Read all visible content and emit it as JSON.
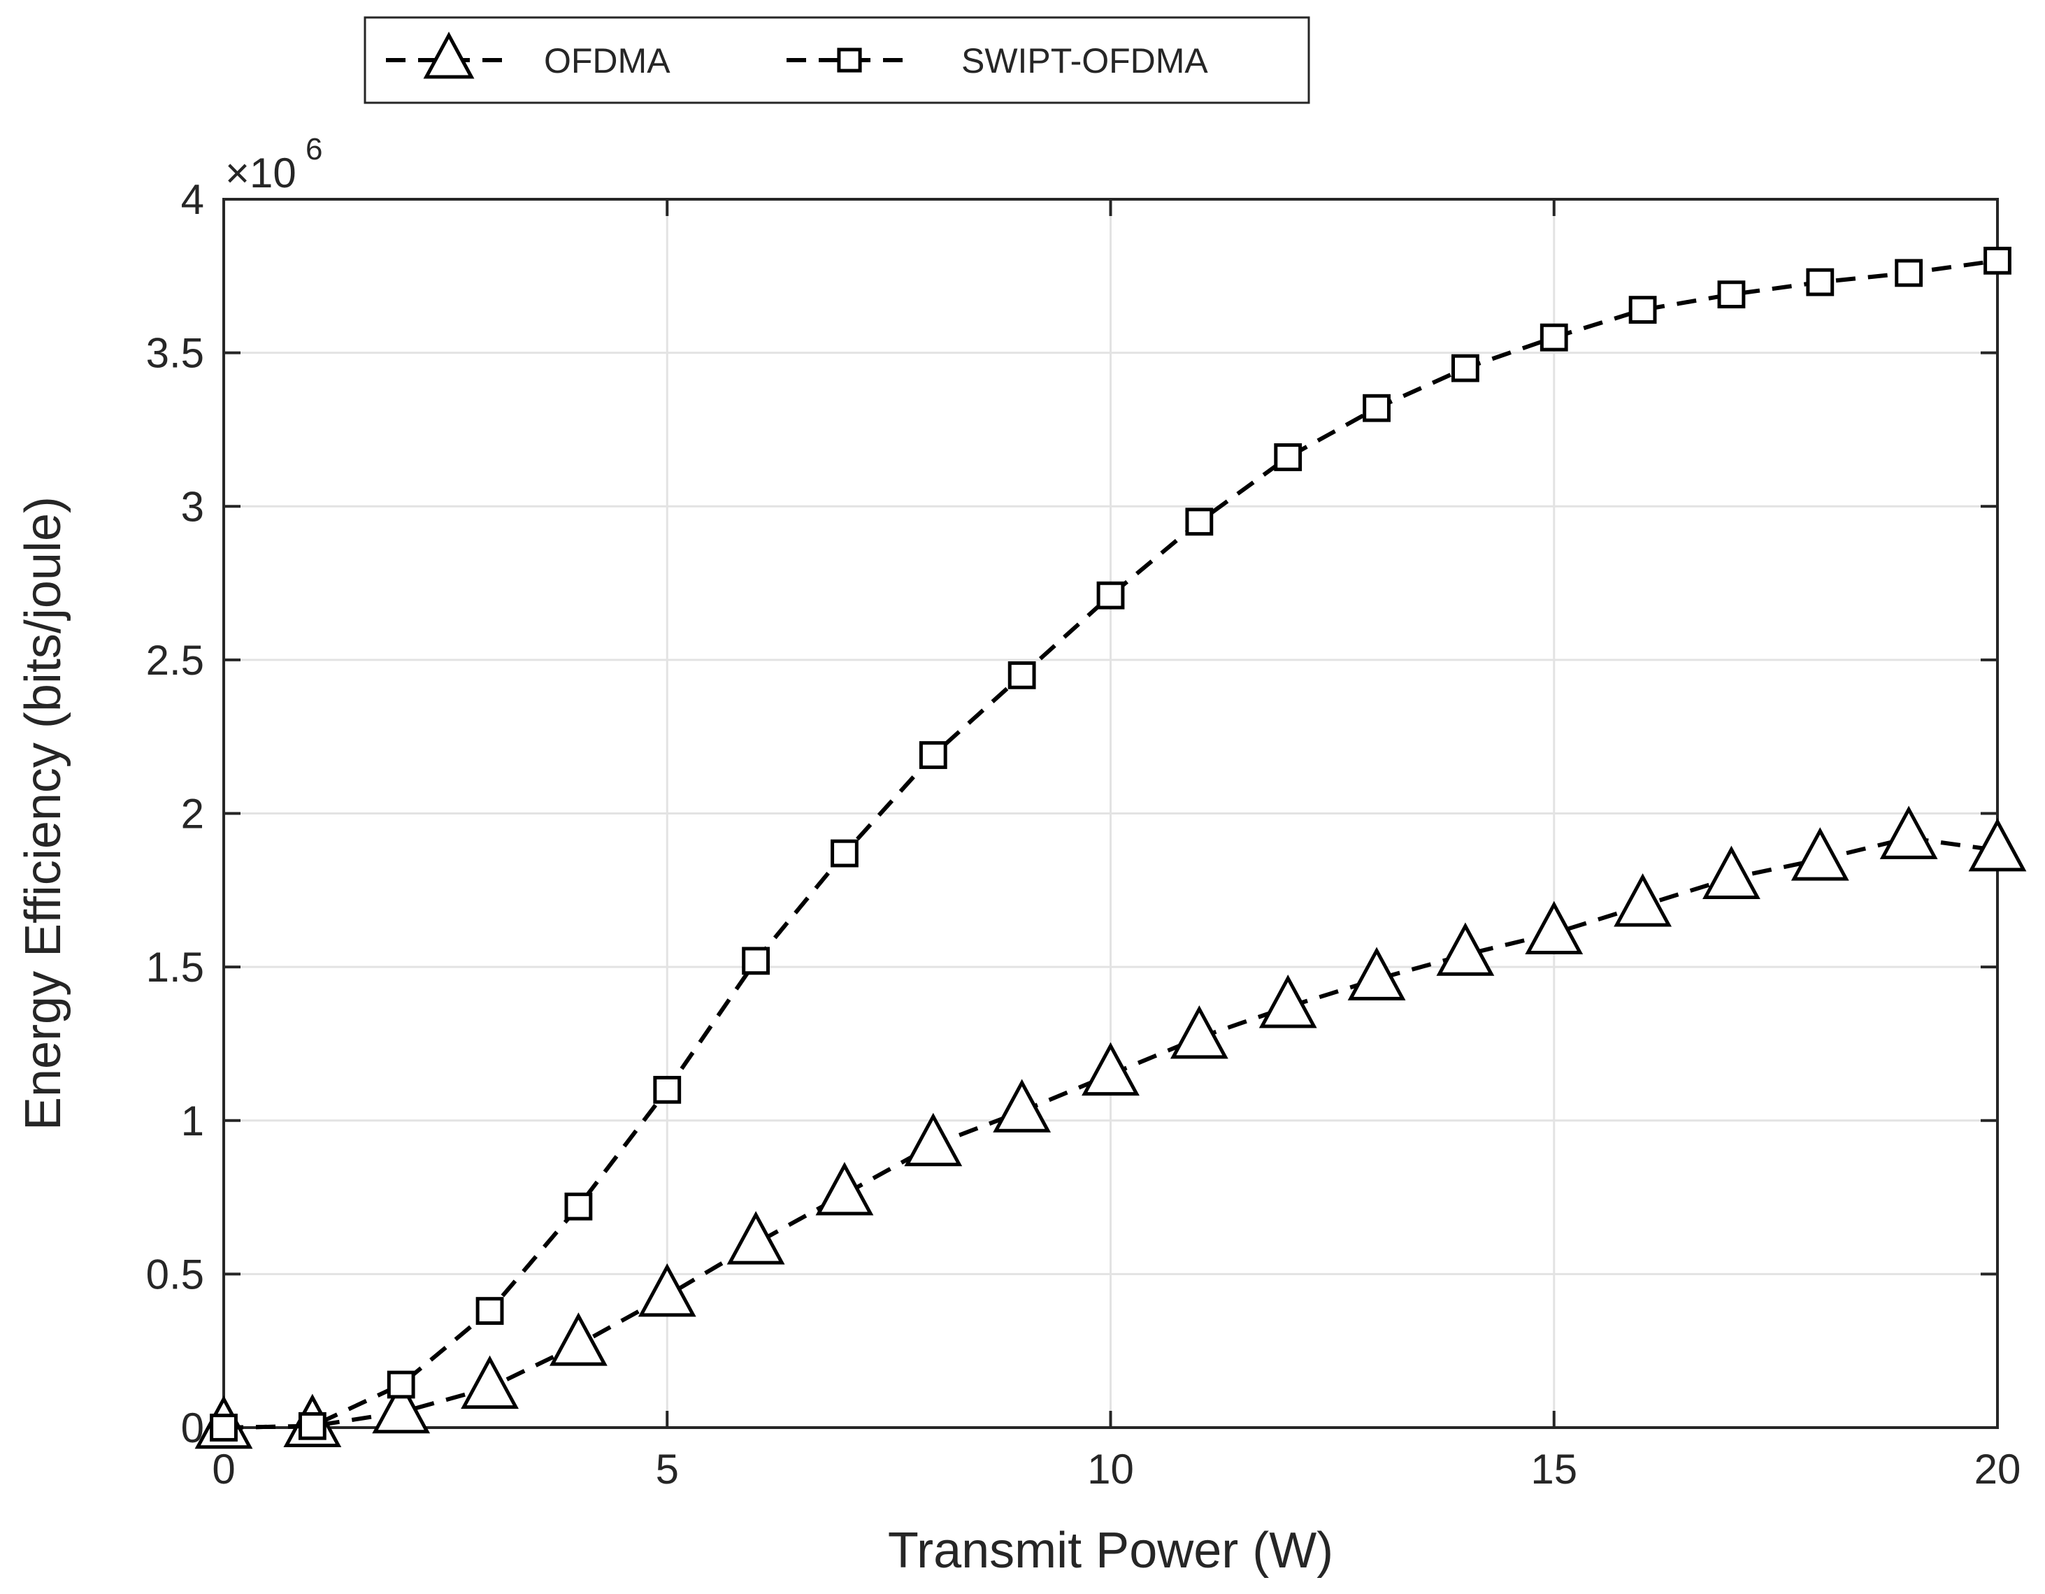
{
  "chart_data": {
    "type": "line",
    "title": "",
    "xlabel": "Transmit Power (W)",
    "ylabel": "Energy Efficiency (bits/joule)",
    "xlim": [
      0,
      20
    ],
    "ylim": [
      0,
      4
    ],
    "xticks": [
      0,
      5,
      10,
      15,
      20
    ],
    "xtick_labels": [
      "0",
      "5",
      "10",
      "15",
      "20"
    ],
    "yticks": [
      0,
      0.5,
      1,
      1.5,
      2,
      2.5,
      3,
      3.5,
      4
    ],
    "ytick_labels": [
      "0",
      "0.5",
      "1",
      "1.5",
      "2",
      "2.5",
      "3",
      "3.5",
      "4"
    ],
    "y_multiplier": {
      "base": "×10",
      "exponent": "6"
    },
    "grid": true,
    "legend_position": "top",
    "x": [
      0,
      1,
      2,
      3,
      4,
      5,
      6,
      7,
      8,
      9,
      10,
      11,
      12,
      13,
      14,
      15,
      16,
      17,
      18,
      19,
      20
    ],
    "series": [
      {
        "name": "OFDMA",
        "marker": "triangle",
        "line_style": "dashed",
        "color": "#000000",
        "values": [
          0,
          0.005,
          0.05,
          0.13,
          0.27,
          0.43,
          0.6,
          0.76,
          0.92,
          1.03,
          1.15,
          1.27,
          1.37,
          1.46,
          1.54,
          1.61,
          1.7,
          1.79,
          1.85,
          1.92,
          1.88
        ]
      },
      {
        "name": "SWIPT-OFDMA",
        "marker": "square",
        "line_style": "dashed",
        "color": "#000000",
        "values": [
          0,
          0.005,
          0.14,
          0.38,
          0.72,
          1.1,
          1.52,
          1.87,
          2.19,
          2.45,
          2.71,
          2.95,
          3.16,
          3.32,
          3.45,
          3.55,
          3.64,
          3.69,
          3.73,
          3.76,
          3.8
        ]
      }
    ]
  }
}
